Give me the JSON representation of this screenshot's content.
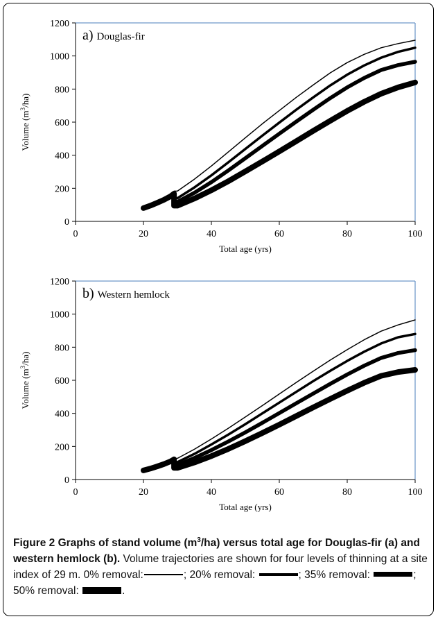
{
  "chart_data": [
    {
      "type": "line",
      "panel_label": "a)",
      "panel_name": "Douglas-fir",
      "xlabel": "Total age (yrs)",
      "ylabel": "Volume (m3/ha)",
      "xlim": [
        0,
        100
      ],
      "ylim": [
        0,
        1200
      ],
      "xticks": [
        0,
        20,
        40,
        60,
        80,
        100
      ],
      "yticks": [
        0,
        200,
        400,
        600,
        800,
        1000,
        1200
      ],
      "grid": false,
      "thinning_age": 29,
      "series": [
        {
          "name": "0% removal",
          "x": [
            20,
            22,
            24,
            26,
            28,
            29,
            30,
            35,
            40,
            45,
            50,
            55,
            60,
            65,
            70,
            75,
            80,
            85,
            90,
            95,
            100
          ],
          "y": [
            80,
            95,
            112,
            130,
            152,
            168,
            183,
            255,
            335,
            420,
            505,
            590,
            670,
            750,
            825,
            898,
            960,
            1010,
            1050,
            1075,
            1095
          ]
        },
        {
          "name": "20% removal",
          "x": [
            20,
            22,
            24,
            26,
            28,
            29,
            30,
            35,
            40,
            45,
            50,
            55,
            60,
            65,
            70,
            75,
            80,
            85,
            90,
            95,
            100
          ],
          "y": [
            80,
            95,
            112,
            130,
            152,
            168,
            140,
            205,
            278,
            357,
            438,
            518,
            597,
            675,
            750,
            822,
            887,
            943,
            990,
            1025,
            1050
          ]
        },
        {
          "name": "35% removal",
          "x": [
            20,
            22,
            24,
            26,
            28,
            29,
            30,
            35,
            40,
            45,
            50,
            55,
            60,
            65,
            70,
            75,
            80,
            85,
            90,
            95,
            100
          ],
          "y": [
            80,
            95,
            112,
            130,
            152,
            168,
            118,
            173,
            237,
            308,
            382,
            456,
            530,
            603,
            675,
            745,
            810,
            867,
            915,
            945,
            965
          ]
        },
        {
          "name": "50% removal",
          "x": [
            20,
            22,
            24,
            26,
            28,
            29,
            30,
            35,
            40,
            45,
            50,
            55,
            60,
            65,
            70,
            75,
            80,
            85,
            90,
            95,
            100
          ],
          "y": [
            80,
            95,
            112,
            130,
            152,
            168,
            95,
            138,
            188,
            243,
            302,
            362,
            423,
            485,
            547,
            608,
            668,
            723,
            772,
            810,
            840
          ]
        }
      ]
    },
    {
      "type": "line",
      "panel_label": "b)",
      "panel_name": "Western hemlock",
      "xlabel": "Total age (yrs)",
      "ylabel": "Volume (m3/ha)",
      "xlim": [
        0,
        100
      ],
      "ylim": [
        0,
        1200
      ],
      "xticks": [
        0,
        20,
        40,
        60,
        80,
        100
      ],
      "yticks": [
        0,
        200,
        400,
        600,
        800,
        1000,
        1200
      ],
      "grid": false,
      "thinning_age": 29,
      "series": [
        {
          "name": "0% removal",
          "x": [
            20,
            22,
            24,
            26,
            28,
            29,
            30,
            35,
            40,
            45,
            50,
            55,
            60,
            65,
            70,
            75,
            80,
            85,
            90,
            95,
            100
          ],
          "y": [
            55,
            66,
            79,
            93,
            110,
            122,
            128,
            183,
            245,
            310,
            378,
            447,
            517,
            587,
            655,
            722,
            785,
            845,
            897,
            935,
            965
          ]
        },
        {
          "name": "20% removal",
          "x": [
            20,
            22,
            24,
            26,
            28,
            29,
            30,
            35,
            40,
            45,
            50,
            55,
            60,
            65,
            70,
            75,
            80,
            85,
            90,
            95,
            100
          ],
          "y": [
            55,
            66,
            79,
            93,
            110,
            122,
            105,
            155,
            212,
            272,
            335,
            400,
            465,
            530,
            595,
            657,
            717,
            773,
            823,
            860,
            880
          ]
        },
        {
          "name": "35% removal",
          "x": [
            20,
            22,
            24,
            26,
            28,
            29,
            30,
            35,
            40,
            45,
            50,
            55,
            60,
            65,
            70,
            75,
            80,
            85,
            90,
            95,
            100
          ],
          "y": [
            55,
            66,
            79,
            93,
            110,
            122,
            88,
            130,
            178,
            230,
            285,
            343,
            402,
            461,
            520,
            578,
            635,
            688,
            735,
            765,
            782
          ]
        },
        {
          "name": "50% removal",
          "x": [
            20,
            22,
            24,
            26,
            28,
            29,
            30,
            35,
            40,
            45,
            50,
            55,
            60,
            65,
            70,
            75,
            80,
            85,
            90,
            95,
            100
          ],
          "y": [
            55,
            66,
            79,
            93,
            110,
            122,
            70,
            103,
            142,
            185,
            232,
            281,
            332,
            384,
            436,
            487,
            537,
            585,
            627,
            650,
            663
          ]
        }
      ]
    }
  ],
  "caption": {
    "lead": "Figure 2 Graphs of stand volume (m",
    "lead_sup": "3",
    "lead_tail": "/ha) versus total age for Douglas-fir (a) and western hemlock (b).",
    "body": "Volume trajectories are shown for four levels of thinning at a site index of 29 m.",
    "legend": [
      {
        "text": "0% removal:",
        "sep": "; "
      },
      {
        "text": "20% removal:",
        "sep": "; "
      },
      {
        "text": "35% removal:",
        "sep": "; "
      },
      {
        "text": "50% removal:",
        "sep": "."
      }
    ]
  },
  "colors": {
    "line": "#000000",
    "plot_border": "#4a7ebb",
    "frame": "#000000"
  }
}
